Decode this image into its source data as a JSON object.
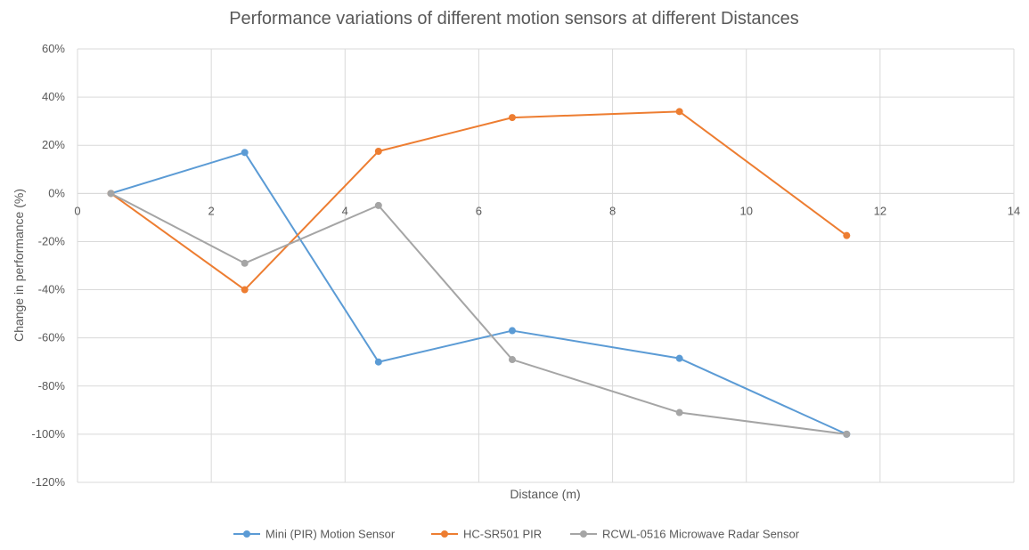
{
  "chart_data": {
    "type": "scatter",
    "title": "Performance variations of different motion sensors at different Distances",
    "xlabel": "Distance (m)",
    "ylabel": "Change in performance (%)",
    "xlim": [
      0,
      14
    ],
    "ylim": [
      -120,
      60
    ],
    "x_ticks": [
      0,
      2,
      4,
      6,
      8,
      10,
      12,
      14
    ],
    "y_ticks": [
      60,
      40,
      20,
      0,
      -20,
      -40,
      -60,
      -80,
      -100,
      -120
    ],
    "x_tick_labels": [
      "0",
      "2",
      "4",
      "6",
      "8",
      "10",
      "12",
      "14"
    ],
    "y_tick_labels": [
      "60%",
      "40%",
      "20%",
      "0%",
      "-20%",
      "-40%",
      "-60%",
      "-80%",
      "-100%",
      "-120%"
    ],
    "grid": true,
    "legend_position": "bottom",
    "series": [
      {
        "name": "Mini (PIR) Motion Sensor",
        "color": "#5B9BD5",
        "x": [
          0.5,
          2.5,
          4.5,
          6.5,
          9,
          11.5
        ],
        "y": [
          0,
          17,
          -70,
          -57,
          -68.5,
          -100
        ]
      },
      {
        "name": "HC-SR501 PIR",
        "color": "#ED7D31",
        "x": [
          0.5,
          2.5,
          4.5,
          6.5,
          9,
          11.5
        ],
        "y": [
          0,
          -40,
          17.5,
          31.5,
          34,
          -17.5
        ]
      },
      {
        "name": "RCWL-0516 Microwave Radar Sensor",
        "color": "#A5A5A5",
        "x": [
          0.5,
          2.5,
          4.5,
          6.5,
          9,
          11.5
        ],
        "y": [
          0,
          -29,
          -5,
          -69,
          -91,
          -100
        ]
      }
    ]
  }
}
